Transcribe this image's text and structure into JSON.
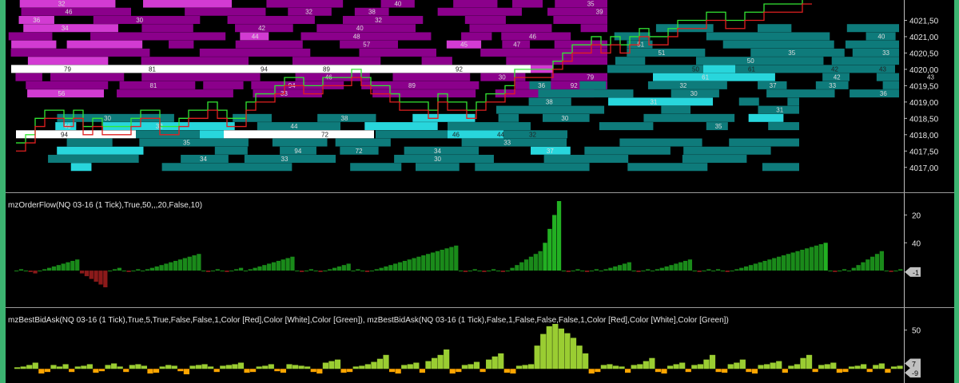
{
  "panels": {
    "price": {
      "y_ticks": [
        "4021,50",
        "4021,00",
        "4020,50",
        "4020,00",
        "4019,50",
        "4019,00",
        "4018,50",
        "4018,00",
        "4017,50",
        "4017,00"
      ]
    },
    "orderflow": {
      "title": "mzOrderFlow(NQ 03-16 (1 Tick),True,50,,,20,False,10)",
      "y_ticks": [
        "40",
        "20"
      ],
      "marker": "-1"
    },
    "bestbidask": {
      "title": "mzBestBidAsk(NQ 03-16 (1 Tick),True,5,True,False,False,1,Color [Red],Color [White],Color [Green]), mzBestBidAsk(NQ 03-16 (1 Tick),False,1,False,False,False,1,Color [Red],Color [White],Color [Green])",
      "y_ticks": [
        "50"
      ],
      "markers": [
        "7",
        "-9"
      ]
    }
  },
  "colors": {
    "ask_bar": "#8b008b",
    "bid_bar": "#0e7b7b",
    "highlight_ask": "#d23bd2",
    "highlight_bid": "#28d6dc",
    "large_bar": "#ffffff",
    "green_line": "#33e633",
    "red_line": "#e02020",
    "of_positive": "#1a8a1a",
    "of_negative": "#8b1a1a",
    "bba_green": "#9acd32",
    "bba_orange": "#ffa500"
  },
  "chart_data": [
    {
      "type": "line",
      "series": [
        {
          "x": [
            0,
            12,
            24,
            36,
            48,
            60,
            72,
            84,
            96,
            108,
            120,
            132,
            144,
            156,
            168,
            180,
            192,
            204,
            216,
            228,
            240,
            252,
            264,
            276,
            288,
            300,
            312,
            324,
            336,
            348,
            360,
            372,
            384,
            396,
            408,
            420,
            432,
            444,
            456,
            468,
            480,
            492,
            504,
            516,
            528,
            540,
            552,
            564,
            576,
            588,
            600,
            612,
            624,
            636,
            648,
            660,
            672,
            684,
            696,
            708,
            720,
            732,
            744,
            756,
            768,
            780,
            792,
            804,
            816,
            828,
            840,
            852,
            864,
            876,
            888,
            900,
            912,
            924,
            936,
            948,
            960,
            972,
            984
          ],
          "values": [
            4017.75,
            4018.0,
            4018.5,
            4018.75,
            4018.75,
            4018.5,
            4018.75,
            4018.25,
            4018.5,
            4018.25,
            4018.25,
            4018.25,
            4018.5,
            4018.75,
            4018.75,
            4018.25,
            4018.25,
            4018.5,
            4018.75,
            4018.75,
            4019.0,
            4018.75,
            4018.5,
            4018.5,
            4019.0,
            4019.25,
            4019.25,
            4019.5,
            4019.75,
            4019.75,
            4019.5,
            4019.5,
            4019.75,
            4019.75,
            4019.75,
            4020.0,
            4019.75,
            4019.5,
            4019.5,
            4019.25,
            4019.0,
            4019.0,
            4019.0,
            4018.75,
            4019.25,
            4019.0,
            4019.0,
            4018.75,
            4019.0,
            4019.25,
            4019.25,
            4019.5,
            4020.0,
            4020.0,
            4020.0,
            4020.0,
            4020.25,
            4020.5,
            4020.75,
            4020.75,
            4021.0,
            4020.75,
            4021.0,
            4020.75,
            4021.0,
            4021.25,
            4021.0,
            4021.0,
            4021.25,
            4021.5,
            4021.5,
            4021.5,
            4021.75,
            4021.75,
            4021.5,
            4021.5,
            4021.75,
            4021.75,
            4022.0,
            4022.0,
            4022.0,
            4022.0,
            4022.25
          ]
        },
        {
          "x": [
            0,
            12,
            24,
            36,
            48,
            60,
            72,
            84,
            96,
            108,
            120,
            132,
            144,
            156,
            168,
            180,
            192,
            204,
            216,
            228,
            240,
            252,
            264,
            276,
            288,
            300,
            312,
            324,
            336,
            348,
            360,
            372,
            384,
            396,
            408,
            420,
            432,
            444,
            456,
            468,
            480,
            492,
            504,
            516,
            528,
            540,
            552,
            564,
            576,
            588,
            600,
            612,
            624,
            636,
            648,
            660,
            672,
            684,
            696,
            708,
            720,
            732,
            744,
            756,
            768,
            780,
            792,
            804,
            816,
            828,
            840,
            852,
            864,
            876,
            888,
            900,
            912,
            924,
            936,
            948,
            960,
            972,
            984
          ],
          "values": [
            4017.5,
            4017.75,
            4018.25,
            4018.5,
            4018.5,
            4018.25,
            4018.5,
            4018.0,
            4018.25,
            4018.0,
            4018.0,
            4018.0,
            4018.25,
            4018.5,
            4018.5,
            4018.0,
            4018.0,
            4018.25,
            4018.5,
            4018.5,
            4018.75,
            4018.5,
            4018.25,
            4018.25,
            4018.75,
            4019.0,
            4019.0,
            4019.25,
            4019.5,
            4019.5,
            4019.25,
            4019.25,
            4019.5,
            4019.5,
            4019.5,
            4019.75,
            4019.5,
            4019.25,
            4019.25,
            4019.0,
            4018.75,
            4018.75,
            4018.75,
            4018.5,
            4019.0,
            4018.75,
            4018.75,
            4018.5,
            4018.75,
            4019.0,
            4019.0,
            4019.25,
            4019.75,
            4019.75,
            4019.75,
            4019.75,
            4020.0,
            4020.25,
            4020.5,
            4020.5,
            4020.75,
            4020.5,
            4020.75,
            4020.5,
            4020.75,
            4021.0,
            4020.75,
            4020.75,
            4021.0,
            4021.25,
            4021.25,
            4021.25,
            4021.5,
            4021.5,
            4021.25,
            4021.25,
            4021.5,
            4021.5,
            4021.75,
            4021.75,
            4021.75,
            4021.75,
            4022.0
          ]
        }
      ],
      "ylim": [
        4016.75,
        4022.0
      ],
      "bar_labels": {
        "ask": [
          "32",
          "40",
          "35",
          "46",
          "32",
          "38",
          "39",
          "36",
          "30",
          "32",
          "34",
          "42",
          "40",
          "44",
          "48",
          "46",
          "57",
          "45",
          "47",
          "46",
          "30",
          "79",
          "81",
          "94",
          "89",
          "92",
          "56",
          "33",
          "30"
        ],
        "bid": [
          "40",
          "51",
          "51",
          "35",
          "33",
          "50",
          "61",
          "42",
          "43",
          "36",
          "32",
          "37",
          "33",
          "30",
          "36",
          "38",
          "31",
          "31",
          "30",
          "38",
          "30",
          "46",
          "32",
          "44",
          "35",
          "35",
          "33",
          "94",
          "72",
          "34",
          "37",
          "34",
          "33",
          "30"
        ]
      }
    },
    {
      "type": "bar",
      "ylim": [
        -20,
        50
      ],
      "y_ticks": [
        20,
        40
      ],
      "values": [
        0,
        1,
        0,
        -1,
        -2,
        0,
        1,
        2,
        3,
        4,
        5,
        6,
        7,
        8,
        -2,
        -4,
        -6,
        -8,
        -10,
        -12,
        0,
        1,
        2,
        0,
        -1,
        0,
        1,
        0,
        1,
        2,
        3,
        4,
        5,
        6,
        7,
        8,
        9,
        10,
        11,
        12,
        0,
        -1,
        0,
        1,
        0,
        -1,
        0,
        1,
        2,
        0,
        1,
        2,
        3,
        4,
        5,
        6,
        7,
        8,
        9,
        10,
        0,
        -1,
        0,
        1,
        0,
        -1,
        0,
        1,
        2,
        3,
        4,
        5,
        0,
        1,
        0,
        -1,
        0,
        1,
        2,
        3,
        4,
        5,
        6,
        7,
        8,
        9,
        10,
        11,
        12,
        13,
        14,
        15,
        16,
        17,
        18,
        0,
        -1,
        0,
        1,
        0,
        -1,
        0,
        1,
        0,
        -1,
        0,
        2,
        4,
        6,
        8,
        10,
        12,
        14,
        20,
        30,
        40,
        50,
        0,
        -1,
        0,
        1,
        0,
        -1,
        0,
        1,
        0,
        1,
        2,
        3,
        4,
        5,
        6,
        0,
        -1,
        0,
        1,
        0,
        1,
        2,
        3,
        4,
        5,
        6,
        7,
        8,
        0,
        -1,
        0,
        1,
        0,
        1,
        0,
        -1,
        0,
        1,
        2,
        3,
        4,
        5,
        6,
        7,
        8,
        9,
        10,
        11,
        12,
        13,
        14,
        15,
        16,
        17,
        18,
        19,
        20,
        0,
        -1,
        0,
        1,
        0,
        2,
        4,
        6,
        8,
        10,
        12,
        14,
        0,
        -1,
        0,
        1
      ]
    },
    {
      "type": "bar",
      "ylim": [
        -10,
        60
      ],
      "y_ticks": [
        50
      ],
      "values": [
        2,
        3,
        5,
        8,
        -6,
        -4,
        5,
        3,
        6,
        -4,
        3,
        4,
        6,
        -5,
        -3,
        5,
        7,
        3,
        -4,
        5,
        6,
        4,
        -6,
        -5,
        3,
        5,
        4,
        -3,
        -7,
        4,
        5,
        6,
        3,
        -4,
        4,
        5,
        6,
        8,
        -5,
        -4,
        3,
        4,
        6,
        -3,
        -5,
        6,
        5,
        4,
        3,
        -4,
        -6,
        8,
        10,
        12,
        -5,
        -4,
        3,
        4,
        6,
        9,
        13,
        18,
        -4,
        -6,
        5,
        6,
        8,
        -5,
        10,
        14,
        18,
        25,
        -6,
        -4,
        5,
        6,
        9,
        -4,
        12,
        16,
        20,
        -5,
        -6,
        4,
        5,
        6,
        30,
        45,
        55,
        58,
        52,
        46,
        40,
        30,
        20,
        -6,
        -4,
        5,
        6,
        4,
        3,
        -5,
        5,
        6,
        10,
        14,
        -4,
        -6,
        4,
        6,
        8,
        -4,
        5,
        6,
        12,
        18,
        -4,
        -5,
        6,
        8,
        12,
        -4,
        -6,
        5,
        6,
        8,
        10,
        -5,
        4,
        6,
        14,
        18,
        -4,
        5,
        6,
        8,
        -5,
        -4,
        3,
        4,
        6,
        -4,
        5,
        7,
        -5,
        3,
        4
      ]
    }
  ]
}
